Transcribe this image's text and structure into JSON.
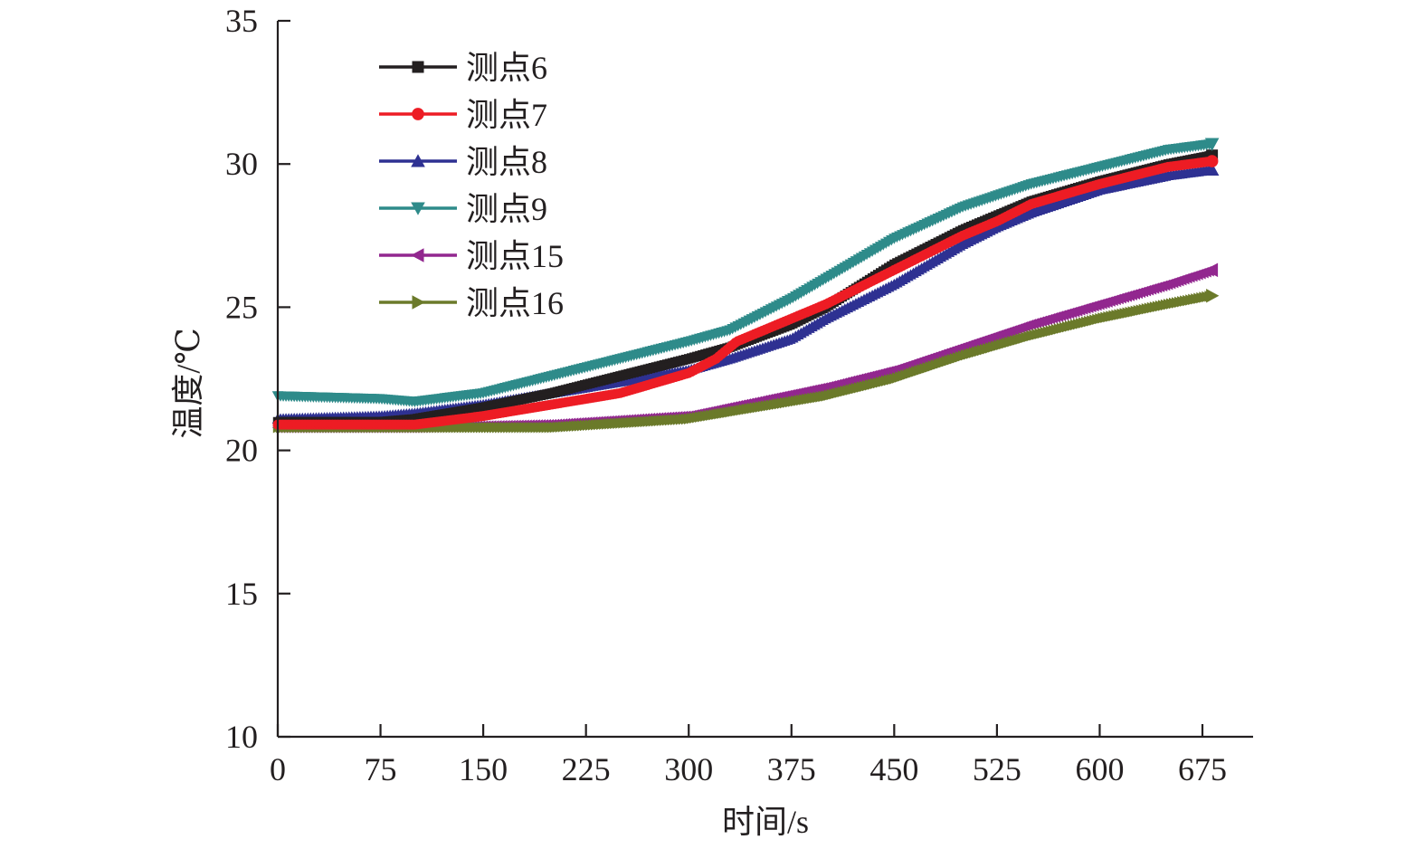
{
  "chart_data": {
    "type": "line",
    "xlabel": "时间/s",
    "ylabel": "温度/℃",
    "xlim": [
      0,
      710
    ],
    "ylim": [
      10,
      35
    ],
    "x_ticks": [
      0,
      75,
      150,
      225,
      300,
      375,
      450,
      525,
      600,
      675
    ],
    "y_ticks": [
      10,
      15,
      20,
      25,
      30,
      35
    ],
    "x_tick_labels": [
      "0",
      "75",
      "150",
      "225",
      "300",
      "375",
      "450",
      "525",
      "600",
      "675"
    ],
    "y_tick_labels": [
      "10",
      "15",
      "20",
      "25",
      "30",
      "35"
    ],
    "grid": false,
    "legend_position": "top-left",
    "series": [
      {
        "name": "测点6",
        "color": "#231f20",
        "marker": "square",
        "x": [
          0,
          75,
          100,
          150,
          200,
          250,
          300,
          330,
          375,
          400,
          450,
          500,
          525,
          550,
          600,
          650,
          682
        ],
        "y": [
          21.0,
          21.0,
          21.1,
          21.5,
          22.0,
          22.6,
          23.2,
          23.6,
          24.4,
          25.0,
          26.5,
          27.7,
          28.2,
          28.7,
          29.4,
          30.0,
          30.3
        ]
      },
      {
        "name": "测点7",
        "color": "#ed1c24",
        "marker": "circle",
        "x": [
          0,
          75,
          100,
          150,
          200,
          250,
          300,
          320,
          335,
          375,
          400,
          450,
          500,
          525,
          550,
          600,
          650,
          682
        ],
        "y": [
          20.9,
          20.9,
          20.9,
          21.2,
          21.6,
          22.0,
          22.7,
          23.2,
          23.8,
          24.6,
          25.1,
          26.3,
          27.5,
          28.0,
          28.6,
          29.3,
          29.9,
          30.1
        ]
      },
      {
        "name": "测点8",
        "color": "#2e3192",
        "marker": "triangle-up",
        "x": [
          0,
          75,
          100,
          150,
          200,
          250,
          300,
          330,
          375,
          400,
          450,
          500,
          525,
          550,
          600,
          650,
          682
        ],
        "y": [
          21.1,
          21.2,
          21.3,
          21.6,
          22.0,
          22.4,
          22.8,
          23.2,
          23.9,
          24.6,
          25.8,
          27.2,
          27.8,
          28.3,
          29.1,
          29.6,
          29.8
        ]
      },
      {
        "name": "测点9",
        "color": "#2e8b8a",
        "marker": "triangle-down",
        "x": [
          0,
          75,
          100,
          150,
          200,
          250,
          300,
          330,
          375,
          400,
          450,
          500,
          525,
          550,
          600,
          650,
          682
        ],
        "y": [
          21.9,
          21.8,
          21.7,
          22.0,
          22.6,
          23.2,
          23.8,
          24.2,
          25.3,
          26.0,
          27.4,
          28.5,
          28.9,
          29.3,
          29.9,
          30.5,
          30.7
        ]
      },
      {
        "name": "测点15",
        "color": "#92278f",
        "marker": "triangle-left",
        "x": [
          0,
          100,
          200,
          300,
          350,
          400,
          450,
          500,
          550,
          600,
          650,
          682
        ],
        "y": [
          20.8,
          20.8,
          20.9,
          21.2,
          21.7,
          22.2,
          22.8,
          23.6,
          24.4,
          25.1,
          25.8,
          26.3
        ]
      },
      {
        "name": "测点16",
        "color": "#6b7a2a",
        "marker": "triangle-right",
        "x": [
          0,
          100,
          200,
          300,
          350,
          400,
          450,
          500,
          550,
          600,
          650,
          682
        ],
        "y": [
          20.8,
          20.8,
          20.8,
          21.1,
          21.5,
          21.9,
          22.5,
          23.3,
          24.0,
          24.6,
          25.1,
          25.4
        ]
      }
    ]
  }
}
